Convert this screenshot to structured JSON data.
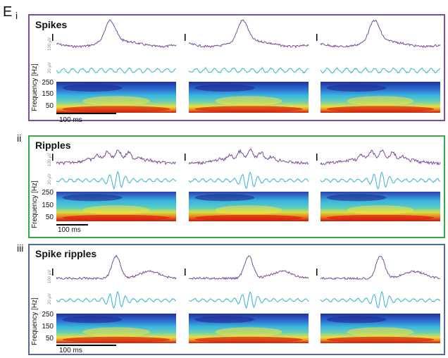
{
  "figure_label": "E",
  "colors": {
    "spikes_border": "#7b4f9d",
    "ripples_border": "#3aa64a",
    "spike_ripples_border": "#4f6aa6",
    "raw_trace": "#7a4c9a",
    "filtered_trace": "#36b3d0"
  },
  "panels": [
    {
      "roman": "i",
      "title": "Spikes",
      "y_axis_label": "Frequency [Hz]",
      "y_ticks": [
        "250",
        "150",
        "50"
      ],
      "scale_text": "100 ms",
      "raw_units": "100 µV",
      "filtered_units": "20 µV"
    },
    {
      "roman": "ii",
      "title": "Ripples",
      "y_axis_label": "Frequency [Hz]",
      "y_ticks": [
        "250",
        "150",
        "50"
      ],
      "scale_text": "100 ms",
      "raw_units": "100 µV",
      "filtered_units": "20 µV"
    },
    {
      "roman": "iii",
      "title": "Spike ripples",
      "y_axis_label": "Frequency [Hz]",
      "y_ticks": [
        "250",
        "150",
        "50"
      ],
      "scale_text": "100 ms",
      "raw_units": "100 µV",
      "filtered_units": "20 µV"
    }
  ]
}
